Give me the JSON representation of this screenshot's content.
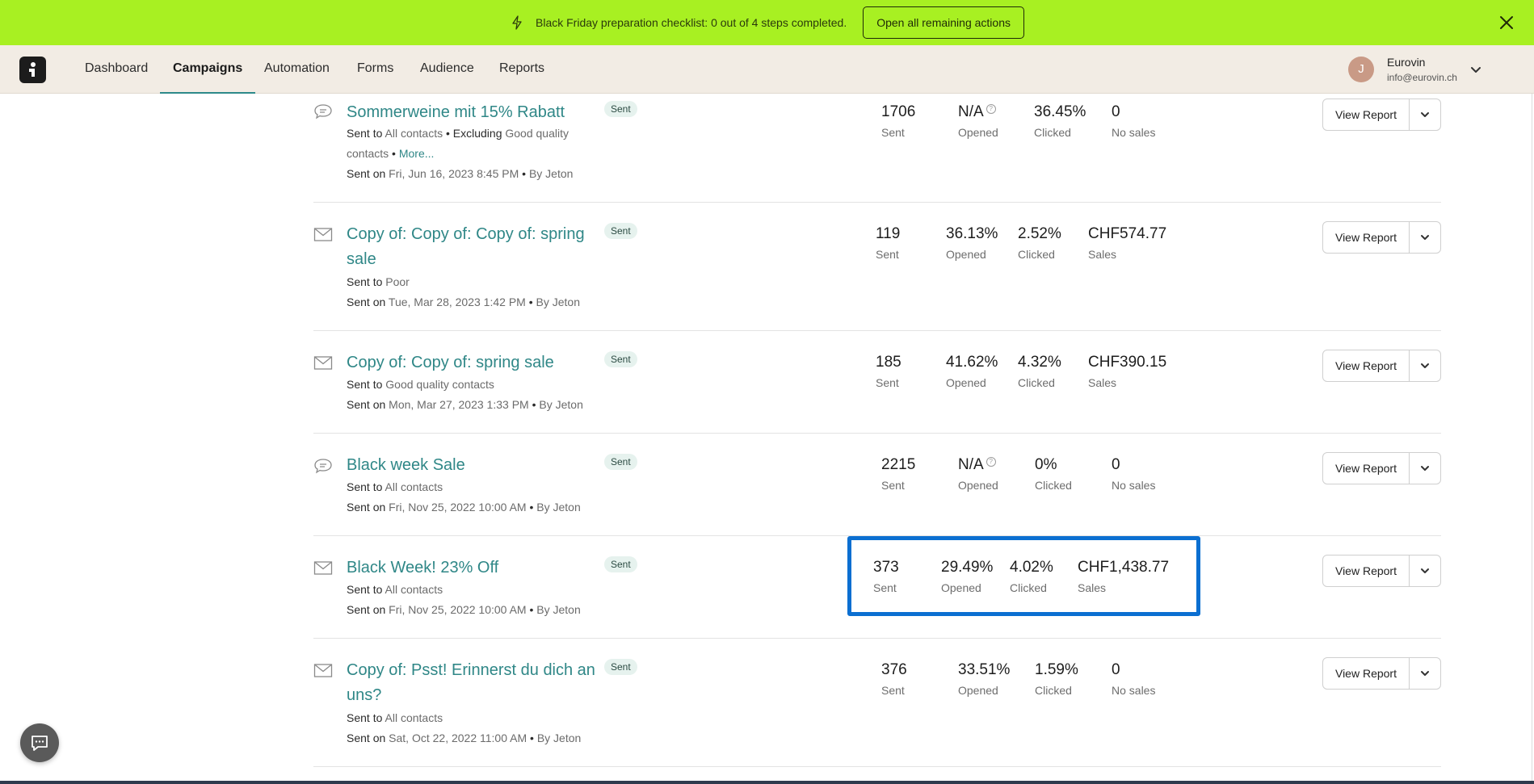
{
  "banner": {
    "text_prefix": "Black Friday preparation checklist: ",
    "text_count": "0 out of 4",
    "text_suffix": " steps completed.",
    "button": "Open all remaining actions",
    "icon": "lightning-icon",
    "close_icon": "close-icon"
  },
  "nav": {
    "logo": "app-logo",
    "items": [
      "Dashboard",
      "Campaigns",
      "Automation",
      "Forms",
      "Audience",
      "Reports"
    ],
    "active": "Campaigns",
    "account": {
      "initial": "J",
      "name": "Eurovin",
      "email": "info@eurovin.ch"
    }
  },
  "campaigns": [
    {
      "icon": "sms-bubble-icon",
      "title": "Sommerweine mit 15% Rabatt",
      "status": "Sent",
      "sent_to_label": "Sent to",
      "sent_to": "All contacts",
      "excluding_label": "Excluding",
      "excluding": "Good quality contacts",
      "more": "More...",
      "date_label": "Sent on",
      "date": "Fri, Jun 16, 2023 8:45 PM",
      "by": "By Jeton",
      "stats": [
        {
          "value": "1706",
          "label": "Sent"
        },
        {
          "value": "N/A",
          "label": "Opened",
          "help": "?"
        },
        {
          "value": "36.45%",
          "label": "Clicked"
        },
        {
          "value": "0",
          "label": "No sales"
        }
      ],
      "action": "View Report"
    },
    {
      "icon": "envelope-icon",
      "title": "Copy of: Copy of: Copy of: spring sale",
      "status": "Sent",
      "sent_to_label": "Sent to",
      "sent_to": "Poor",
      "date_label": "Sent on",
      "date": "Tue, Mar 28, 2023 1:42 PM",
      "by": "By Jeton",
      "stats": [
        {
          "value": "119",
          "label": "Sent"
        },
        {
          "value": "36.13%",
          "label": "Opened"
        },
        {
          "value": "2.52%",
          "label": "Clicked"
        },
        {
          "value": "CHF574.77",
          "label": "Sales"
        }
      ],
      "action": "View Report"
    },
    {
      "icon": "envelope-icon",
      "title": "Copy of: Copy of: spring sale",
      "status": "Sent",
      "sent_to_label": "Sent to",
      "sent_to": "Good quality contacts",
      "date_label": "Sent on",
      "date": "Mon, Mar 27, 2023 1:33 PM",
      "by": "By Jeton",
      "stats": [
        {
          "value": "185",
          "label": "Sent"
        },
        {
          "value": "41.62%",
          "label": "Opened"
        },
        {
          "value": "4.32%",
          "label": "Clicked"
        },
        {
          "value": "CHF390.15",
          "label": "Sales"
        }
      ],
      "action": "View Report"
    },
    {
      "icon": "sms-bubble-icon",
      "title": "Black week Sale",
      "status": "Sent",
      "sent_to_label": "Sent to",
      "sent_to": "All contacts",
      "date_label": "Sent on",
      "date": "Fri, Nov 25, 2022 10:00 AM",
      "by": "By Jeton",
      "stats": [
        {
          "value": "2215",
          "label": "Sent"
        },
        {
          "value": "N/A",
          "label": "Opened",
          "help": "?"
        },
        {
          "value": "0%",
          "label": "Clicked"
        },
        {
          "value": "0",
          "label": "No sales"
        }
      ],
      "action": "View Report"
    },
    {
      "icon": "envelope-icon",
      "title": "Black Week! 23% Off",
      "status": "Sent",
      "sent_to_label": "Sent to",
      "sent_to": "All contacts",
      "date_label": "Sent on",
      "date": "Fri, Nov 25, 2022 10:00 AM",
      "by": "By Jeton",
      "stats": [
        {
          "value": "373",
          "label": "Sent"
        },
        {
          "value": "29.49%",
          "label": "Opened"
        },
        {
          "value": "4.02%",
          "label": "Clicked"
        },
        {
          "value": "CHF1,438.77",
          "label": "Sales"
        }
      ],
      "action": "View Report"
    },
    {
      "icon": "envelope-icon",
      "title": "Copy of: Psst! Erinnerst du dich an uns?",
      "status": "Sent",
      "sent_to_label": "Sent to",
      "sent_to": "All contacts",
      "date_label": "Sent on",
      "date": "Sat, Oct 22, 2022 11:00 AM",
      "by": "By Jeton",
      "stats": [
        {
          "value": "376",
          "label": "Sent"
        },
        {
          "value": "33.51%",
          "label": "Opened"
        },
        {
          "value": "1.59%",
          "label": "Clicked"
        },
        {
          "value": "0",
          "label": "No sales"
        }
      ],
      "action": "View Report"
    }
  ],
  "chat_icon": "chat-icon",
  "colors": {
    "banner": "#a8f022",
    "accent": "#2f8787",
    "highlight": "#0b6fd1"
  }
}
